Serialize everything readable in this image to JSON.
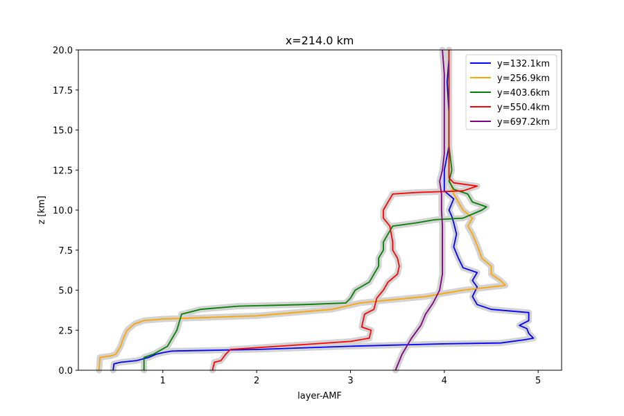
{
  "chart_data": {
    "type": "line",
    "title": "x=214.0 km",
    "xlabel": "layer-AMF",
    "ylabel": "z [km]",
    "xlim": [
      0.1,
      5.25
    ],
    "ylim": [
      0,
      20
    ],
    "xticks": [
      1,
      2,
      3,
      4,
      5
    ],
    "xtick_labels": [
      "1",
      "2",
      "3",
      "4",
      "5"
    ],
    "yticks": [
      0,
      2.5,
      5,
      7.5,
      10,
      12.5,
      15,
      17.5,
      20
    ],
    "ytick_labels": [
      "0.0",
      "2.5",
      "5.0",
      "7.5",
      "10.0",
      "12.5",
      "15.0",
      "17.5",
      "20.0"
    ],
    "grid": false,
    "legend_placement": "top-right",
    "uncertainty_band_color": "#d3d3d3",
    "series": [
      {
        "name": "y=132.1km",
        "color": "#0000ff",
        "points": [
          [
            0.47,
            0.0
          ],
          [
            0.48,
            0.4
          ],
          [
            0.55,
            0.5
          ],
          [
            0.72,
            0.6
          ],
          [
            0.85,
            0.8
          ],
          [
            0.93,
            1.0
          ],
          [
            1.0,
            1.1
          ],
          [
            1.1,
            1.2
          ],
          [
            2.0,
            1.3
          ],
          [
            3.0,
            1.5
          ],
          [
            4.0,
            1.65
          ],
          [
            4.6,
            1.7
          ],
          [
            4.85,
            1.9
          ],
          [
            4.95,
            2.0
          ],
          [
            4.9,
            2.3
          ],
          [
            4.88,
            2.6
          ],
          [
            4.8,
            2.8
          ],
          [
            4.9,
            3.1
          ],
          [
            4.9,
            3.6
          ],
          [
            4.5,
            3.8
          ],
          [
            4.35,
            4.1
          ],
          [
            4.3,
            4.6
          ],
          [
            4.35,
            5.2
          ],
          [
            4.3,
            5.6
          ],
          [
            4.35,
            6.1
          ],
          [
            4.2,
            6.4
          ],
          [
            4.15,
            7.0
          ],
          [
            4.1,
            7.7
          ],
          [
            4.13,
            8.5
          ],
          [
            4.1,
            9.2
          ],
          [
            4.08,
            9.6
          ],
          [
            4.05,
            10.0
          ],
          [
            4.1,
            10.7
          ],
          [
            4.0,
            11.2
          ],
          [
            4.0,
            11.8
          ],
          [
            4.0,
            12.5
          ],
          [
            4.05,
            14.0
          ],
          [
            4.05,
            16.0
          ],
          [
            4.03,
            18.0
          ],
          [
            4.05,
            19.5
          ],
          [
            4.05,
            20.0
          ]
        ]
      },
      {
        "name": "y=256.9km",
        "color": "#ffa500",
        "points": [
          [
            0.32,
            0.0
          ],
          [
            0.33,
            0.8
          ],
          [
            0.45,
            0.9
          ],
          [
            0.5,
            1.0
          ],
          [
            0.55,
            1.5
          ],
          [
            0.58,
            2.0
          ],
          [
            0.62,
            2.5
          ],
          [
            0.7,
            2.9
          ],
          [
            0.8,
            3.1
          ],
          [
            1.0,
            3.2
          ],
          [
            2.0,
            3.4
          ],
          [
            2.8,
            3.8
          ],
          [
            3.1,
            4.2
          ],
          [
            3.8,
            4.6
          ],
          [
            4.2,
            5.0
          ],
          [
            4.65,
            5.3
          ],
          [
            4.6,
            5.6
          ],
          [
            4.5,
            6.0
          ],
          [
            4.5,
            6.5
          ],
          [
            4.4,
            7.0
          ],
          [
            4.35,
            7.8
          ],
          [
            4.3,
            8.5
          ],
          [
            4.25,
            9.0
          ],
          [
            4.3,
            9.5
          ],
          [
            4.2,
            10.0
          ],
          [
            4.15,
            10.5
          ],
          [
            4.1,
            11.0
          ],
          [
            4.05,
            12.0
          ],
          [
            4.05,
            14.0
          ],
          [
            4.05,
            16.0
          ],
          [
            4.05,
            18.0
          ],
          [
            4.05,
            20.0
          ]
        ]
      },
      {
        "name": "y=403.6km",
        "color": "#008000",
        "points": [
          [
            0.8,
            0.0
          ],
          [
            0.8,
            0.8
          ],
          [
            0.9,
            1.0
          ],
          [
            1.05,
            1.5
          ],
          [
            1.1,
            2.0
          ],
          [
            1.15,
            2.5
          ],
          [
            1.2,
            3.5
          ],
          [
            1.4,
            3.8
          ],
          [
            1.8,
            4.0
          ],
          [
            2.5,
            4.1
          ],
          [
            2.95,
            4.2
          ],
          [
            3.0,
            4.5
          ],
          [
            3.05,
            5.0
          ],
          [
            3.2,
            5.5
          ],
          [
            3.25,
            6.0
          ],
          [
            3.3,
            6.5
          ],
          [
            3.3,
            7.0
          ],
          [
            3.35,
            7.5
          ],
          [
            3.35,
            8.0
          ],
          [
            3.4,
            8.5
          ],
          [
            3.45,
            9.0
          ],
          [
            3.7,
            9.2
          ],
          [
            3.9,
            9.4
          ],
          [
            4.2,
            9.5
          ],
          [
            4.4,
            10.0
          ],
          [
            4.45,
            10.2
          ],
          [
            4.3,
            10.5
          ],
          [
            4.25,
            11.0
          ],
          [
            4.1,
            11.3
          ],
          [
            4.05,
            11.8
          ],
          [
            4.08,
            12.5
          ],
          [
            4.05,
            14.0
          ],
          [
            4.05,
            16.0
          ],
          [
            4.05,
            18.0
          ],
          [
            4.05,
            20.0
          ]
        ]
      },
      {
        "name": "y=550.4km",
        "color": "#ff0000",
        "points": [
          [
            1.53,
            0.0
          ],
          [
            1.55,
            0.5
          ],
          [
            1.62,
            0.6
          ],
          [
            1.67,
            1.0
          ],
          [
            1.72,
            1.3
          ],
          [
            2.5,
            1.6
          ],
          [
            3.0,
            1.8
          ],
          [
            3.2,
            2.0
          ],
          [
            3.22,
            2.5
          ],
          [
            3.12,
            2.7
          ],
          [
            3.15,
            3.5
          ],
          [
            3.25,
            3.8
          ],
          [
            3.28,
            4.5
          ],
          [
            3.35,
            5.0
          ],
          [
            3.4,
            5.5
          ],
          [
            3.5,
            6.0
          ],
          [
            3.52,
            6.5
          ],
          [
            3.5,
            7.0
          ],
          [
            3.45,
            7.5
          ],
          [
            3.45,
            8.0
          ],
          [
            3.42,
            9.0
          ],
          [
            3.35,
            9.5
          ],
          [
            3.35,
            10.0
          ],
          [
            3.4,
            10.5
          ],
          [
            3.45,
            11.0
          ],
          [
            3.7,
            11.1
          ],
          [
            4.2,
            11.2
          ],
          [
            4.35,
            11.5
          ],
          [
            4.1,
            11.7
          ],
          [
            4.05,
            12.0
          ],
          [
            4.05,
            13.0
          ],
          [
            4.05,
            15.0
          ],
          [
            4.05,
            17.0
          ],
          [
            4.05,
            20.0
          ]
        ]
      },
      {
        "name": "y=697.2km",
        "color": "#800080",
        "points": [
          [
            3.48,
            0.0
          ],
          [
            3.55,
            1.0
          ],
          [
            3.65,
            2.0
          ],
          [
            3.75,
            2.8
          ],
          [
            3.8,
            3.5
          ],
          [
            3.88,
            4.2
          ],
          [
            3.95,
            5.0
          ],
          [
            3.98,
            6.0
          ],
          [
            3.98,
            7.0
          ],
          [
            3.98,
            8.0
          ],
          [
            3.98,
            9.0
          ],
          [
            3.97,
            10.0
          ],
          [
            3.97,
            11.0
          ],
          [
            3.95,
            11.8
          ],
          [
            3.98,
            12.5
          ],
          [
            4.0,
            13.5
          ],
          [
            4.0,
            15.0
          ],
          [
            4.0,
            17.0
          ],
          [
            4.0,
            18.5
          ],
          [
            3.98,
            20.0
          ]
        ]
      }
    ]
  }
}
